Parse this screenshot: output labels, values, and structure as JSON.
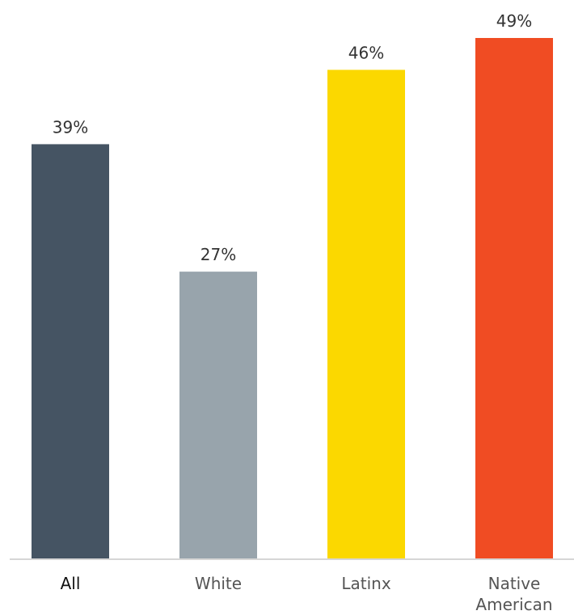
{
  "chart_data": {
    "type": "bar",
    "title": "",
    "xlabel": "",
    "ylabel": "",
    "ylim": [
      0,
      50
    ],
    "grid": false,
    "categories": [
      "All",
      "White",
      "Latinx",
      "Native American"
    ],
    "category_lines": [
      [
        "All"
      ],
      [
        "White"
      ],
      [
        "Latinx"
      ],
      [
        "Native",
        "American"
      ]
    ],
    "values": [
      39,
      27,
      46,
      49
    ],
    "value_labels": [
      "39%",
      "27%",
      "46%",
      "49%"
    ],
    "colors": [
      "#455463",
      "#98A4AC",
      "#FBD800",
      "#F04C23"
    ]
  }
}
